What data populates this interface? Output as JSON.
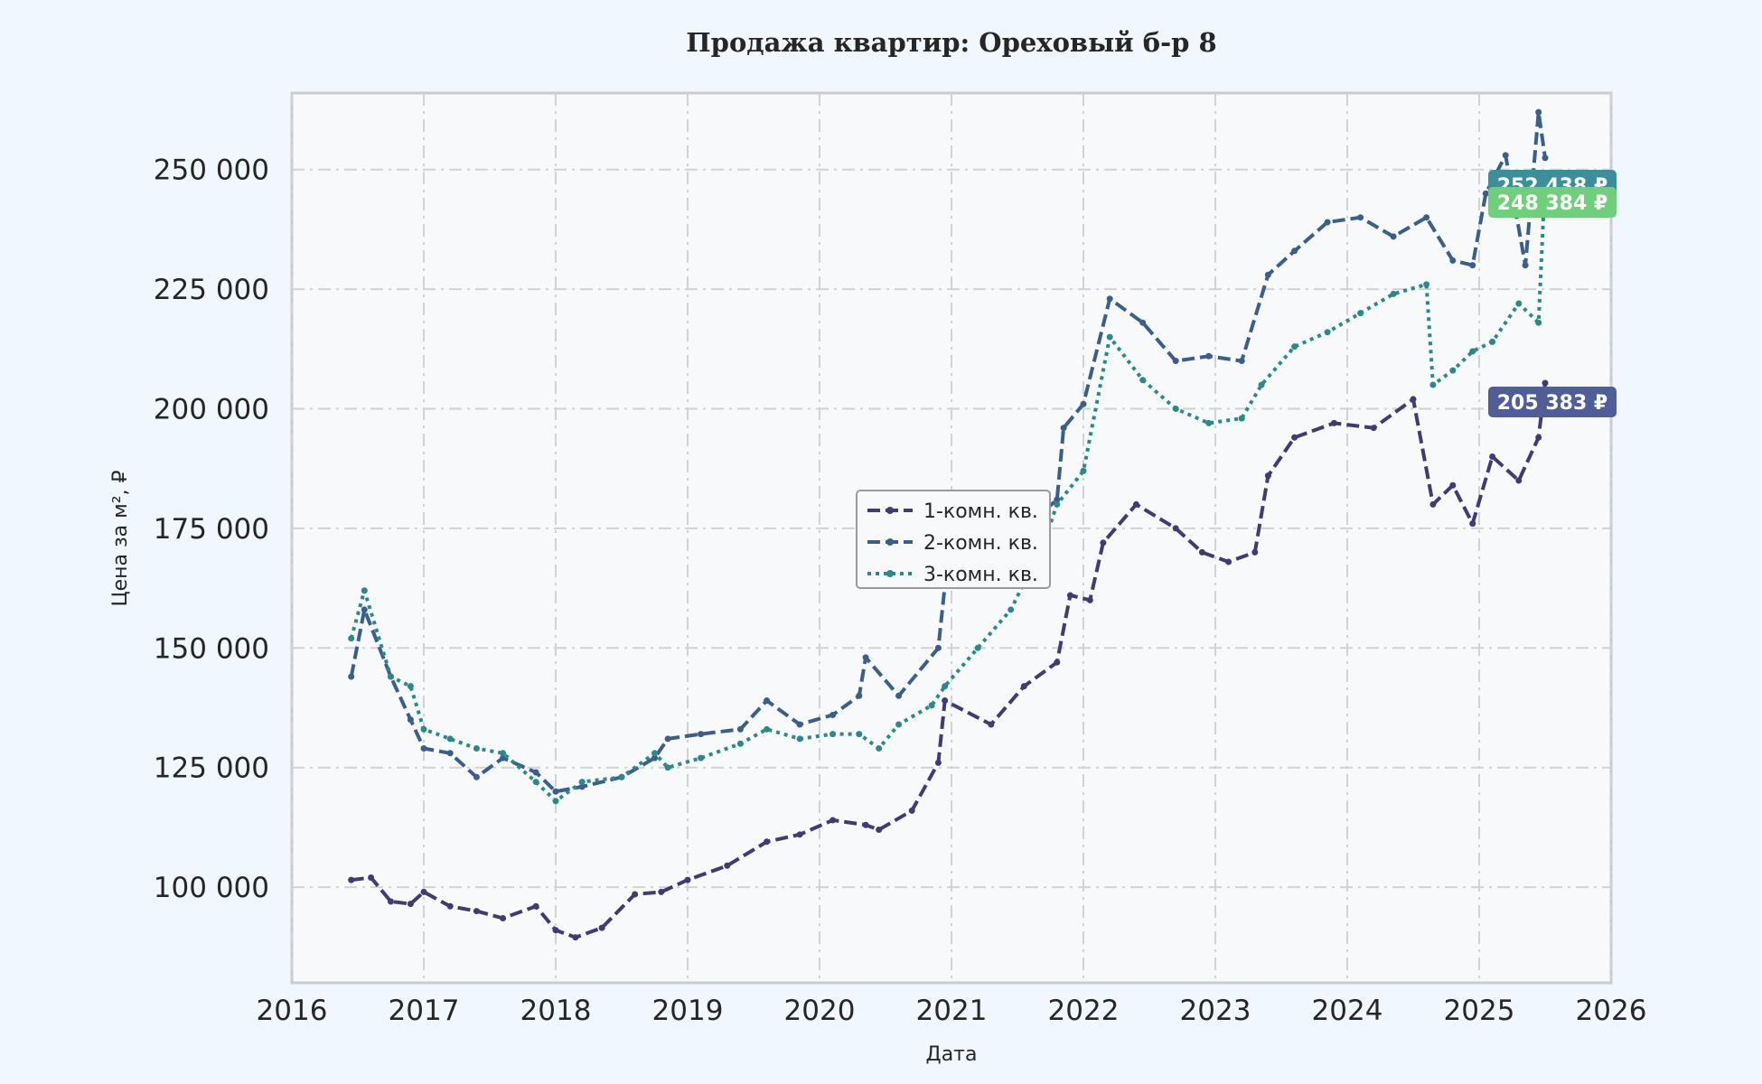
{
  "chart_data": {
    "type": "line",
    "title": "Продажа квартир: Ореховый б-р 8",
    "xlabel": "Дата",
    "ylabel": "Цена за м², ₽",
    "xlim": [
      2016.0,
      2026.0
    ],
    "ylim": [
      80000,
      266000
    ],
    "x_ticks": [
      2016,
      2017,
      2018,
      2019,
      2020,
      2021,
      2022,
      2023,
      2024,
      2025,
      2026
    ],
    "x_tick_labels": [
      "2016",
      "2017",
      "2018",
      "2019",
      "2020",
      "2021",
      "2022",
      "2023",
      "2024",
      "2025",
      "2026"
    ],
    "y_ticks": [
      100000,
      125000,
      150000,
      175000,
      200000,
      225000,
      250000
    ],
    "y_tick_labels": [
      "100 000",
      "125 000",
      "150 000",
      "175 000",
      "200 000",
      "225 000",
      "250 000"
    ],
    "grid": true,
    "legend_position": "center",
    "series": [
      {
        "name": "1-комн. кв.",
        "color": "#403a75",
        "line_style": "dashed",
        "end_label": "205 383 ₽",
        "end_label_color": "#4f5e96",
        "x": [
          2016.45,
          2016.6,
          2016.75,
          2016.9,
          2017.0,
          2017.2,
          2017.4,
          2017.6,
          2017.85,
          2018.0,
          2018.15,
          2018.35,
          2018.6,
          2018.8,
          2019.0,
          2019.3,
          2019.6,
          2019.85,
          2020.1,
          2020.35,
          2020.45,
          2020.7,
          2020.9,
          2020.95,
          2021.3,
          2021.55,
          2021.8,
          2021.9,
          2022.05,
          2022.15,
          2022.4,
          2022.7,
          2022.9,
          2023.1,
          2023.3,
          2023.4,
          2023.6,
          2023.9,
          2024.2,
          2024.5,
          2024.65,
          2024.8,
          2024.95,
          2025.1,
          2025.3,
          2025.45,
          2025.5
        ],
        "y": [
          101500,
          102000,
          97000,
          96500,
          99000,
          96000,
          95000,
          93500,
          96000,
          91000,
          89500,
          91500,
          98500,
          99000,
          101500,
          104500,
          109500,
          111000,
          114000,
          113000,
          112000,
          116000,
          126000,
          139000,
          134000,
          142000,
          147000,
          161000,
          160000,
          172000,
          180000,
          175000,
          170000,
          168000,
          170000,
          186000,
          194000,
          197000,
          196000,
          202000,
          180000,
          184000,
          176000,
          190000,
          185000,
          194000,
          205383
        ]
      },
      {
        "name": "2-комн. кв.",
        "color": "#3a5f8a",
        "line_style": "dashed",
        "end_label": "252 438 ₽",
        "end_label_color": "#3a8f9a",
        "x": [
          2016.45,
          2016.55,
          2016.75,
          2016.9,
          2017.0,
          2017.2,
          2017.4,
          2017.6,
          2017.85,
          2018.0,
          2018.2,
          2018.5,
          2018.75,
          2018.85,
          2019.1,
          2019.4,
          2019.6,
          2019.85,
          2020.1,
          2020.3,
          2020.35,
          2020.6,
          2020.9,
          2020.95,
          2021.3,
          2021.55,
          2021.8,
          2021.85,
          2022.0,
          2022.2,
          2022.45,
          2022.7,
          2022.95,
          2023.2,
          2023.4,
          2023.6,
          2023.85,
          2024.1,
          2024.35,
          2024.6,
          2024.8,
          2024.95,
          2025.05,
          2025.2,
          2025.35,
          2025.45,
          2025.5
        ],
        "y": [
          144000,
          158000,
          144000,
          135000,
          129000,
          128000,
          123000,
          127000,
          124000,
          120000,
          121000,
          123000,
          127000,
          131000,
          132000,
          133000,
          139000,
          134000,
          136000,
          140000,
          148000,
          140000,
          150000,
          163000,
          170000,
          175000,
          181000,
          196000,
          201000,
          223000,
          218000,
          210000,
          211000,
          210000,
          228000,
          233000,
          239000,
          240000,
          236000,
          240000,
          231000,
          230000,
          245000,
          253000,
          230000,
          262000,
          252438
        ]
      },
      {
        "name": "3-комн. кв.",
        "color": "#2a8a8a",
        "line_style": "dotted",
        "end_label": "248 384 ₽",
        "end_label_color": "#6fcf7a",
        "x": [
          2016.45,
          2016.55,
          2016.75,
          2016.9,
          2017.0,
          2017.2,
          2017.4,
          2017.6,
          2017.85,
          2018.0,
          2018.2,
          2018.5,
          2018.75,
          2018.85,
          2019.1,
          2019.4,
          2019.6,
          2019.85,
          2020.1,
          2020.3,
          2020.45,
          2020.6,
          2020.85,
          2020.95,
          2021.2,
          2021.45,
          2021.7,
          2021.8,
          2022.0,
          2022.2,
          2022.45,
          2022.7,
          2022.95,
          2023.2,
          2023.35,
          2023.6,
          2023.85,
          2024.1,
          2024.35,
          2024.6,
          2024.65,
          2024.8,
          2024.95,
          2025.1,
          2025.3,
          2025.45,
          2025.5
        ],
        "y": [
          152000,
          162000,
          144000,
          142000,
          133000,
          131000,
          129000,
          128000,
          122000,
          118000,
          122000,
          123000,
          128000,
          125000,
          127000,
          130000,
          133000,
          131000,
          132000,
          132000,
          129000,
          134000,
          138000,
          142000,
          150000,
          158000,
          172000,
          180000,
          187000,
          215000,
          206000,
          200000,
          197000,
          198000,
          205000,
          213000,
          216000,
          220000,
          224000,
          226000,
          205000,
          208000,
          212000,
          214000,
          222000,
          218000,
          248384
        ]
      }
    ]
  }
}
